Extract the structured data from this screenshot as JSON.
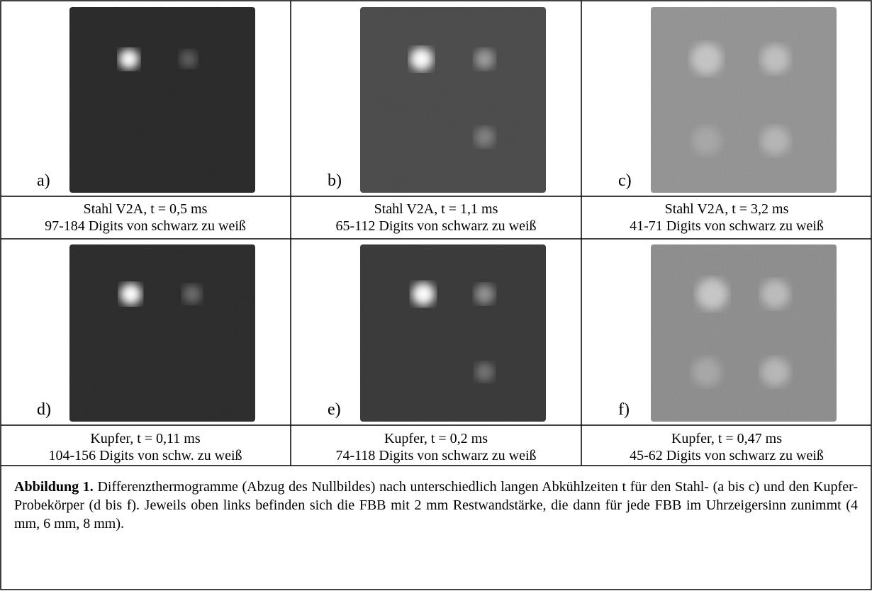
{
  "panels": [
    {
      "label": "a)",
      "line1": "Stahl V2A, t = 0,5 ms",
      "line2": "97-184 Digits von schwarz zu weiß"
    },
    {
      "label": "b)",
      "line1": "Stahl V2A, t = 1,1 ms",
      "line2": "65-112 Digits von schwarz zu weiß"
    },
    {
      "label": "c)",
      "line1": "Stahl V2A, t = 3,2 ms",
      "line2": "41-71 Digits von schwarz zu weiß"
    },
    {
      "label": "d)",
      "line1": "Kupfer, t = 0,11 ms",
      "line2": "104-156 Digits von schw. zu weiß"
    },
    {
      "label": "e)",
      "line1": "Kupfer, t = 0,2 ms",
      "line2": "74-118 Digits von schwarz zu weiß"
    },
    {
      "label": "f)",
      "line1": "Kupfer, t = 0,47 ms",
      "line2": "45-62 Digits von schwarz zu weiß"
    }
  ],
  "caption": {
    "label": "Abbildung 1.",
    "text": "Differenzthermogramme (Abzug des Nullbildes) nach unterschiedlich langen Abkühlzeiten t für den Stahl- (a bis c) und den Kupfer-Probekörper (d bis f). Jeweils oben links befinden sich die FBB mit 2 mm Restwandstärke, die dann für jede FBB im Uhrzeigersinn zunimmt (4 mm, 6 mm, 8 mm)."
  }
}
